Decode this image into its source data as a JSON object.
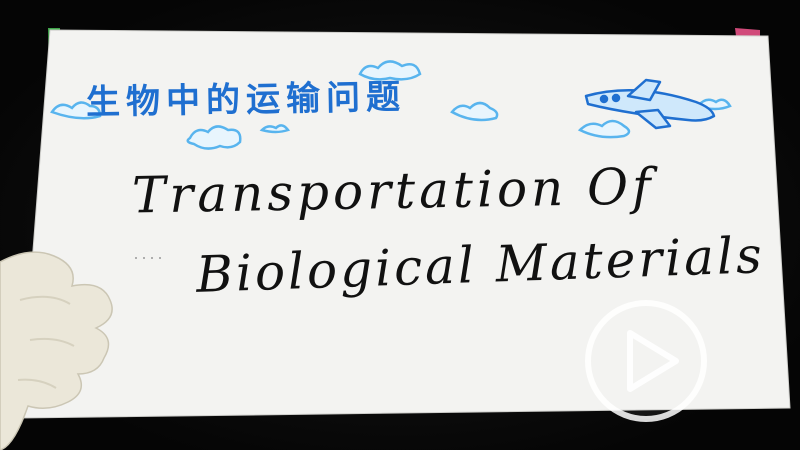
{
  "card": {
    "title_chinese": "生物中的运输问题",
    "title_english_line1": "Transportation Of",
    "title_english_line2": "Biological Materials"
  },
  "player": {
    "play_icon": "play-circle-icon"
  },
  "colors": {
    "paper": "#f4f4f2",
    "ink_blue": "#1f6fd0",
    "cloud_blue": "#58b4ee",
    "ink_black": "#111111",
    "background": "#0b0b0b"
  }
}
